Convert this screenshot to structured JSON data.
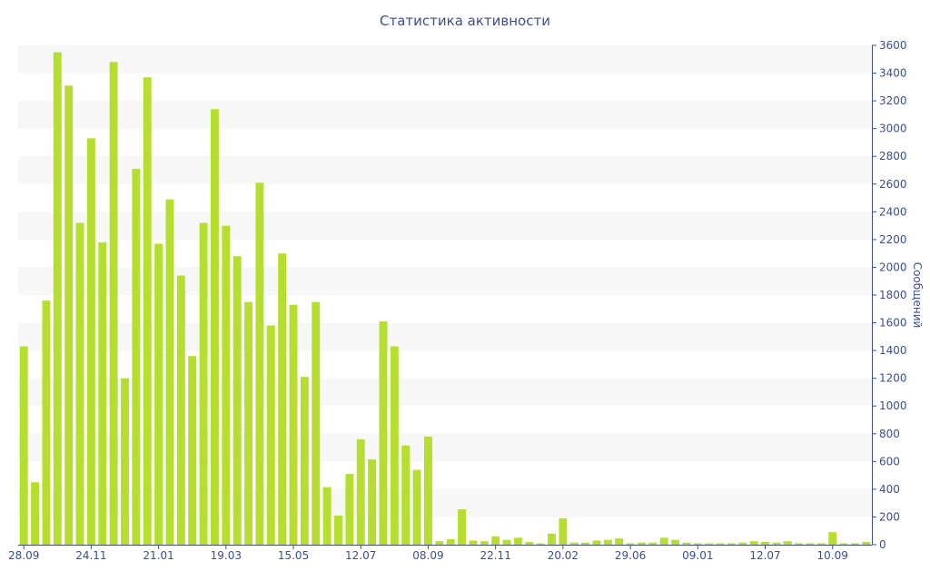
{
  "chart_data": {
    "type": "bar",
    "title": "Статистика активности",
    "xlabel": "",
    "ylabel": "Сообщений",
    "y_axis_side": "right",
    "ylim": [
      0,
      3600
    ],
    "yticks": [
      0,
      200,
      400,
      600,
      800,
      1000,
      1200,
      1400,
      1600,
      1800,
      2000,
      2200,
      2400,
      2600,
      2800,
      3000,
      3200,
      3400,
      3600
    ],
    "x_tick_labels": [
      {
        "label": "28.09",
        "index": 0
      },
      {
        "label": "24.11",
        "index": 6
      },
      {
        "label": "21.01",
        "index": 12
      },
      {
        "label": "19.03",
        "index": 18
      },
      {
        "label": "15.05",
        "index": 24
      },
      {
        "label": "12.07",
        "index": 30
      },
      {
        "label": "08.09",
        "index": 36
      },
      {
        "label": "22.11",
        "index": 42
      },
      {
        "label": "20.02",
        "index": 48
      },
      {
        "label": "29.06",
        "index": 54
      },
      {
        "label": "09.01",
        "index": 60
      },
      {
        "label": "12.07",
        "index": 66
      },
      {
        "label": "10.09",
        "index": 72
      }
    ],
    "values": [
      1430,
      450,
      1760,
      3550,
      3310,
      2320,
      2930,
      2180,
      3480,
      1200,
      2710,
      3370,
      2170,
      2490,
      1940,
      1360,
      2320,
      3140,
      2300,
      2080,
      1750,
      2610,
      1580,
      2100,
      1730,
      1210,
      1750,
      415,
      210,
      510,
      760,
      615,
      1610,
      1430,
      715,
      540,
      780,
      25,
      40,
      255,
      30,
      25,
      60,
      35,
      50,
      20,
      10,
      80,
      190,
      15,
      15,
      30,
      35,
      45,
      10,
      15,
      15,
      50,
      35,
      15,
      10,
      10,
      10,
      10,
      15,
      25,
      20,
      15,
      25,
      10,
      10,
      10,
      90,
      10,
      10,
      20
    ],
    "bar_color": "#b5de2f",
    "grid": "alternating horizontal bands",
    "colors": {
      "text": "#3c4f8a",
      "axis": "#3c4f8a",
      "band": "#f7f7f7"
    }
  }
}
